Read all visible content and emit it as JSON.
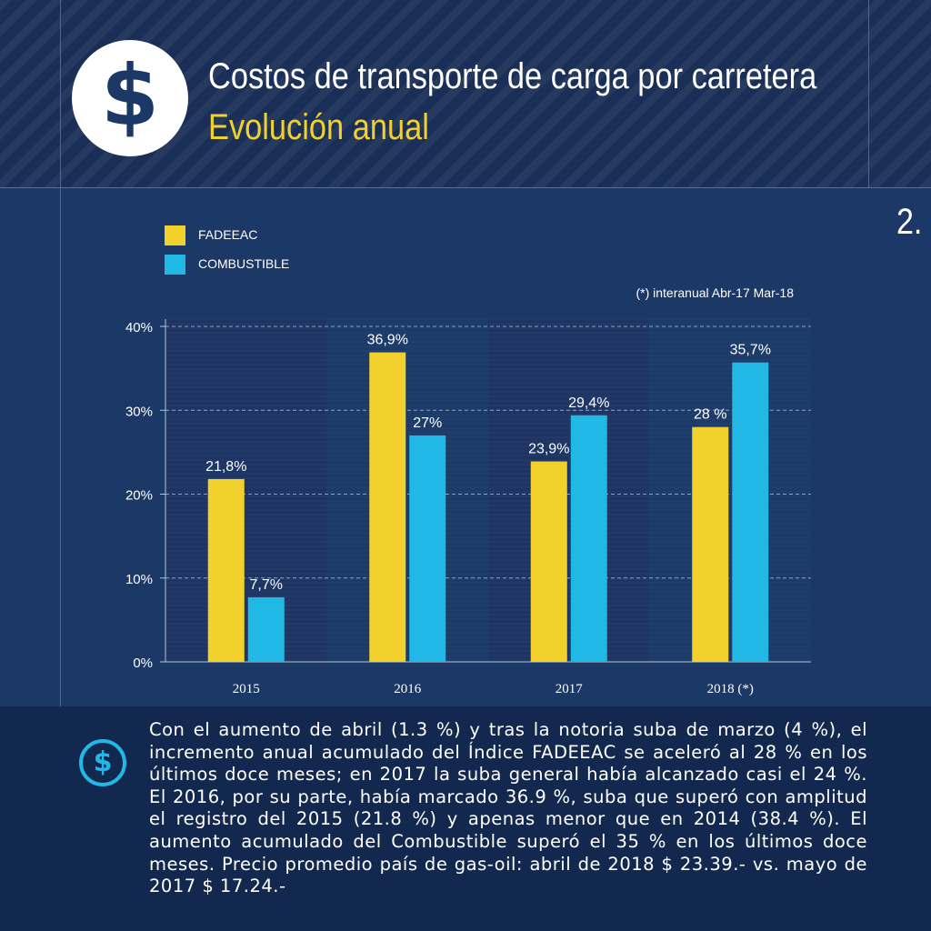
{
  "header": {
    "title": "Costos de transporte de carga por carretera",
    "subtitle": "Evolución anual",
    "icon": "dollar-icon"
  },
  "page_number": "2.",
  "colors": {
    "background": "#1b3866",
    "header_bg": "#1a2f57",
    "footer_bg": "#13284f",
    "fadeeac": "#f2d12d",
    "combustible": "#22b8e6",
    "text": "#ffffff"
  },
  "chart_data": {
    "type": "bar",
    "categories": [
      "2015",
      "2016",
      "2017",
      "2018 (*)"
    ],
    "series": [
      {
        "name": "FADEEAC",
        "values": [
          21.8,
          36.9,
          23.9,
          28
        ],
        "labels": [
          "21,8%",
          "36,9%",
          "23,9%",
          "28 %"
        ],
        "color": "#f2d12d"
      },
      {
        "name": "COMBUSTIBLE",
        "values": [
          7.7,
          27,
          29.4,
          35.7
        ],
        "labels": [
          "7,7%",
          "27%",
          "29,4%",
          "35,7%"
        ],
        "color": "#22b8e6"
      }
    ],
    "yticks": [
      0,
      10,
      20,
      30,
      40
    ],
    "ytick_labels": [
      "0%",
      "10%",
      "20%",
      "30%",
      "40%"
    ],
    "ylim": [
      0,
      40
    ],
    "note": "(*) interanual Abr-17 Mar-18",
    "legend_position": "top-left",
    "grid": true
  },
  "footer": {
    "icon": "dollar-circle-icon",
    "text": "Con el aumento de abril (1.3 %) y tras la notoria suba de marzo (4 %), el incremento anual acumulado del Índice FADEEAC se aceleró al 28 % en los últimos doce meses; en 2017 la suba general había alcanzado casi el 24 %. El 2016, por su parte, había marcado 36.9 %, suba que superó con amplitud el registro del 2015 (21.8 %) y apenas menor que en 2014 (38.4 %). El aumento acumulado del Combustible superó el 35 % en los últimos doce meses. Precio promedio país de gas-oil: abril de 2018 $ 23.39.- vs. mayo de 2017 $ 17.24.-"
  }
}
